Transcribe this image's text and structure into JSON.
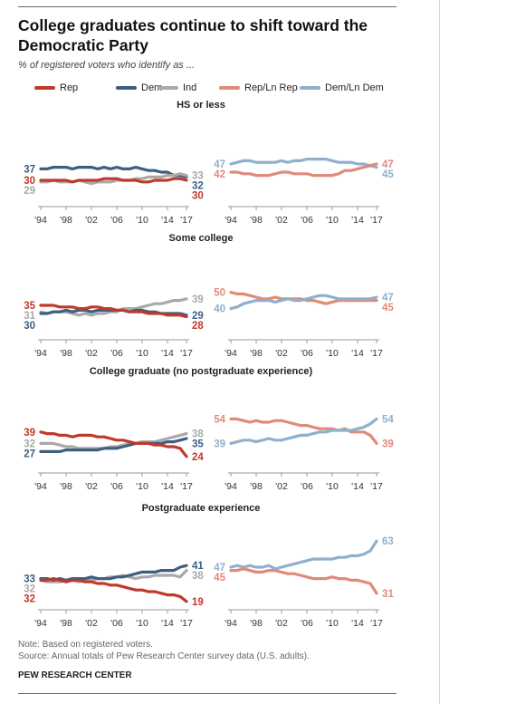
{
  "title": "College graduates continue to shift toward the Democratic Party",
  "subtitle": "% of registered voters who identify as ...",
  "legend": [
    {
      "label": "Rep",
      "color": "#c0392b"
    },
    {
      "label": "Dem",
      "color": "#3e5f80"
    },
    {
      "label": "Ind",
      "color": "#a9a9a9"
    },
    {
      "label": "Rep/Ln Rep",
      "color": "#e08a7a"
    },
    {
      "label": "Dem/Ln Dem",
      "color": "#8fb0cc"
    }
  ],
  "note": "Note: Based on registered voters.",
  "source": "Source: Annual totals of Pew Research Center survey data (U.S. adults).",
  "brand": "PEW RESEARCH CENTER",
  "x_tick_labels": [
    "'94",
    "'98",
    "'02",
    "'06",
    "'10",
    "'14",
    "'17"
  ],
  "chart_data": [
    {
      "type": "line",
      "title": "HS or less",
      "x": [
        1994,
        1995,
        1996,
        1997,
        1998,
        1999,
        2000,
        2001,
        2002,
        2003,
        2004,
        2005,
        2006,
        2007,
        2008,
        2009,
        2010,
        2011,
        2012,
        2013,
        2014,
        2015,
        2016,
        2017
      ],
      "left": {
        "ylim": [
          15,
          65
        ],
        "series": [
          {
            "name": "Dem",
            "color": "#3e5f80",
            "start": 37,
            "end": 32,
            "values": [
              37,
              37,
              38,
              38,
              38,
              37,
              38,
              38,
              38,
              37,
              38,
              37,
              38,
              37,
              37,
              38,
              37,
              36,
              36,
              35,
              35,
              33,
              33,
              32
            ]
          },
          {
            "name": "Ind",
            "color": "#a9a9a9",
            "start": 29,
            "end": 33,
            "values": [
              29,
              29,
              30,
              29,
              29,
              29,
              30,
              29,
              28,
              29,
              29,
              29,
              30,
              30,
              30,
              31,
              31,
              32,
              32,
              32,
              33,
              33,
              34,
              33
            ]
          },
          {
            "name": "Rep",
            "color": "#c0392b",
            "start": 30,
            "end": 30,
            "values": [
              30,
              30,
              30,
              30,
              30,
              29,
              30,
              30,
              30,
              30,
              31,
              31,
              31,
              30,
              30,
              30,
              29,
              29,
              30,
              30,
              30,
              31,
              31,
              30
            ]
          }
        ]
      },
      "right": {
        "ylim": [
          22,
          72
        ],
        "series": [
          {
            "name": "Dem/Ln Dem",
            "color": "#8fb0cc",
            "start": 47,
            "end": 45,
            "values": [
              47,
              48,
              49,
              49,
              48,
              48,
              48,
              48,
              49,
              48,
              49,
              49,
              50,
              50,
              50,
              50,
              49,
              48,
              48,
              48,
              47,
              47,
              46,
              45
            ]
          },
          {
            "name": "Rep/Ln Rep",
            "color": "#e08a7a",
            "start": 42,
            "end": 47,
            "values": [
              42,
              42,
              41,
              41,
              40,
              40,
              40,
              41,
              42,
              42,
              41,
              41,
              41,
              40,
              40,
              40,
              40,
              41,
              43,
              43,
              44,
              45,
              46,
              47
            ]
          }
        ]
      }
    },
    {
      "type": "line",
      "title": "Some college",
      "x": [
        1994,
        1995,
        1996,
        1997,
        1998,
        1999,
        2000,
        2001,
        2002,
        2003,
        2004,
        2005,
        2006,
        2007,
        2008,
        2009,
        2010,
        2011,
        2012,
        2013,
        2014,
        2015,
        2016,
        2017
      ],
      "left": {
        "ylim": [
          15,
          65
        ],
        "series": [
          {
            "name": "Ind",
            "color": "#a9a9a9",
            "start": 31,
            "end": 39,
            "values": [
              31,
              30,
              31,
              31,
              31,
              30,
              29,
              30,
              29,
              30,
              30,
              31,
              31,
              33,
              33,
              33,
              34,
              35,
              36,
              36,
              37,
              38,
              38,
              39
            ]
          },
          {
            "name": "Dem",
            "color": "#3e5f80",
            "start": 30,
            "end": 29,
            "values": [
              30,
              30,
              31,
              31,
              32,
              31,
              32,
              32,
              31,
              32,
              32,
              32,
              32,
              32,
              31,
              32,
              32,
              31,
              31,
              30,
              30,
              30,
              30,
              29
            ]
          },
          {
            "name": "Rep",
            "color": "#c0392b",
            "start": 35,
            "end": 28,
            "values": [
              35,
              35,
              35,
              34,
              34,
              34,
              33,
              33,
              34,
              34,
              33,
              33,
              32,
              32,
              31,
              31,
              31,
              30,
              30,
              30,
              29,
              29,
              29,
              28
            ]
          }
        ]
      },
      "right": {
        "ylim": [
          22,
          72
        ],
        "series": [
          {
            "name": "Rep/Ln Rep",
            "color": "#e08a7a",
            "start": 50,
            "end": 45,
            "values": [
              50,
              49,
              49,
              48,
              47,
              46,
              46,
              47,
              46,
              46,
              46,
              46,
              45,
              45,
              44,
              43,
              44,
              45,
              45,
              45,
              45,
              45,
              45,
              45
            ]
          },
          {
            "name": "Dem/Ln Dem",
            "color": "#8fb0cc",
            "start": 40,
            "end": 47,
            "values": [
              40,
              41,
              43,
              44,
              45,
              45,
              45,
              44,
              45,
              46,
              45,
              45,
              46,
              47,
              48,
              48,
              47,
              46,
              46,
              46,
              46,
              46,
              46,
              47
            ]
          }
        ]
      }
    },
    {
      "type": "line",
      "title": "College graduate (no postgraduate experience)",
      "x": [
        1994,
        1995,
        1996,
        1997,
        1998,
        1999,
        2000,
        2001,
        2002,
        2003,
        2004,
        2005,
        2006,
        2007,
        2008,
        2009,
        2010,
        2011,
        2012,
        2013,
        2014,
        2015,
        2016,
        2017
      ],
      "left": {
        "ylim": [
          15,
          65
        ],
        "series": [
          {
            "name": "Ind",
            "color": "#a9a9a9",
            "start": 32,
            "end": 38,
            "values": [
              32,
              32,
              32,
              31,
              30,
              30,
              29,
              29,
              29,
              29,
              29,
              30,
              30,
              31,
              32,
              32,
              33,
              33,
              33,
              34,
              35,
              36,
              37,
              38
            ]
          },
          {
            "name": "Dem",
            "color": "#3e5f80",
            "start": 27,
            "end": 35,
            "values": [
              27,
              27,
              27,
              27,
              28,
              28,
              28,
              28,
              28,
              28,
              29,
              29,
              29,
              30,
              31,
              32,
              32,
              32,
              32,
              32,
              33,
              33,
              34,
              35
            ]
          },
          {
            "name": "Rep",
            "color": "#c0392b",
            "start": 39,
            "end": 24,
            "values": [
              39,
              38,
              38,
              37,
              37,
              36,
              37,
              37,
              37,
              36,
              36,
              35,
              34,
              34,
              33,
              32,
              32,
              32,
              31,
              31,
              30,
              30,
              29,
              24
            ]
          }
        ]
      },
      "right": {
        "ylim": [
          22,
          72
        ],
        "series": [
          {
            "name": "Rep/Ln Rep",
            "color": "#e08a7a",
            "start": 54,
            "end": 39,
            "values": [
              54,
              54,
              53,
              52,
              53,
              52,
              52,
              53,
              53,
              52,
              51,
              50,
              50,
              49,
              48,
              48,
              48,
              47,
              48,
              46,
              46,
              46,
              44,
              39
            ]
          },
          {
            "name": "Dem/Ln Dem",
            "color": "#8fb0cc",
            "start": 39,
            "end": 54,
            "values": [
              39,
              40,
              41,
              41,
              40,
              41,
              42,
              41,
              41,
              42,
              43,
              44,
              44,
              45,
              46,
              46,
              47,
              47,
              47,
              47,
              48,
              49,
              51,
              54
            ]
          }
        ]
      }
    },
    {
      "type": "line",
      "title": "Postgraduate experience",
      "x": [
        1994,
        1995,
        1996,
        1997,
        1998,
        1999,
        2000,
        2001,
        2002,
        2003,
        2004,
        2005,
        2006,
        2007,
        2008,
        2009,
        2010,
        2011,
        2012,
        2013,
        2014,
        2015,
        2016,
        2017
      ],
      "left": {
        "ylim": [
          15,
          65
        ],
        "series": [
          {
            "name": "Ind",
            "color": "#a9a9a9",
            "start": 32,
            "end": 38,
            "values": [
              32,
              31,
              31,
              31,
              32,
              32,
              31,
              32,
              32,
              33,
              33,
              34,
              34,
              35,
              34,
              33,
              34,
              34,
              35,
              35,
              35,
              35,
              34,
              38
            ]
          },
          {
            "name": "Dem",
            "color": "#3e5f80",
            "start": 33,
            "end": 41,
            "values": [
              33,
              33,
              32,
              33,
              32,
              33,
              33,
              33,
              34,
              33,
              33,
              33,
              34,
              34,
              35,
              36,
              37,
              37,
              37,
              38,
              38,
              38,
              40,
              41
            ]
          },
          {
            "name": "Rep",
            "color": "#c0392b",
            "start": 32,
            "end": 19,
            "values": [
              32,
              32,
              33,
              32,
              31,
              32,
              32,
              31,
              31,
              30,
              30,
              29,
              29,
              28,
              27,
              26,
              26,
              25,
              25,
              24,
              23,
              23,
              22,
              19
            ]
          }
        ]
      },
      "right": {
        "ylim": [
          22,
          72
        ],
        "series": [
          {
            "name": "Dem/Ln Dem",
            "color": "#8fb0cc",
            "start": 47,
            "end": 63,
            "values": [
              47,
              48,
              47,
              48,
              47,
              47,
              48,
              46,
              47,
              48,
              49,
              50,
              51,
              52,
              52,
              52,
              52,
              53,
              53,
              54,
              54,
              55,
              57,
              63
            ]
          },
          {
            "name": "Rep/Ln Rep",
            "color": "#e08a7a",
            "start": 45,
            "end": 31,
            "values": [
              45,
              45,
              46,
              45,
              44,
              44,
              45,
              45,
              44,
              43,
              43,
              42,
              41,
              40,
              40,
              40,
              41,
              40,
              40,
              39,
              39,
              38,
              37,
              31
            ]
          }
        ]
      }
    }
  ]
}
